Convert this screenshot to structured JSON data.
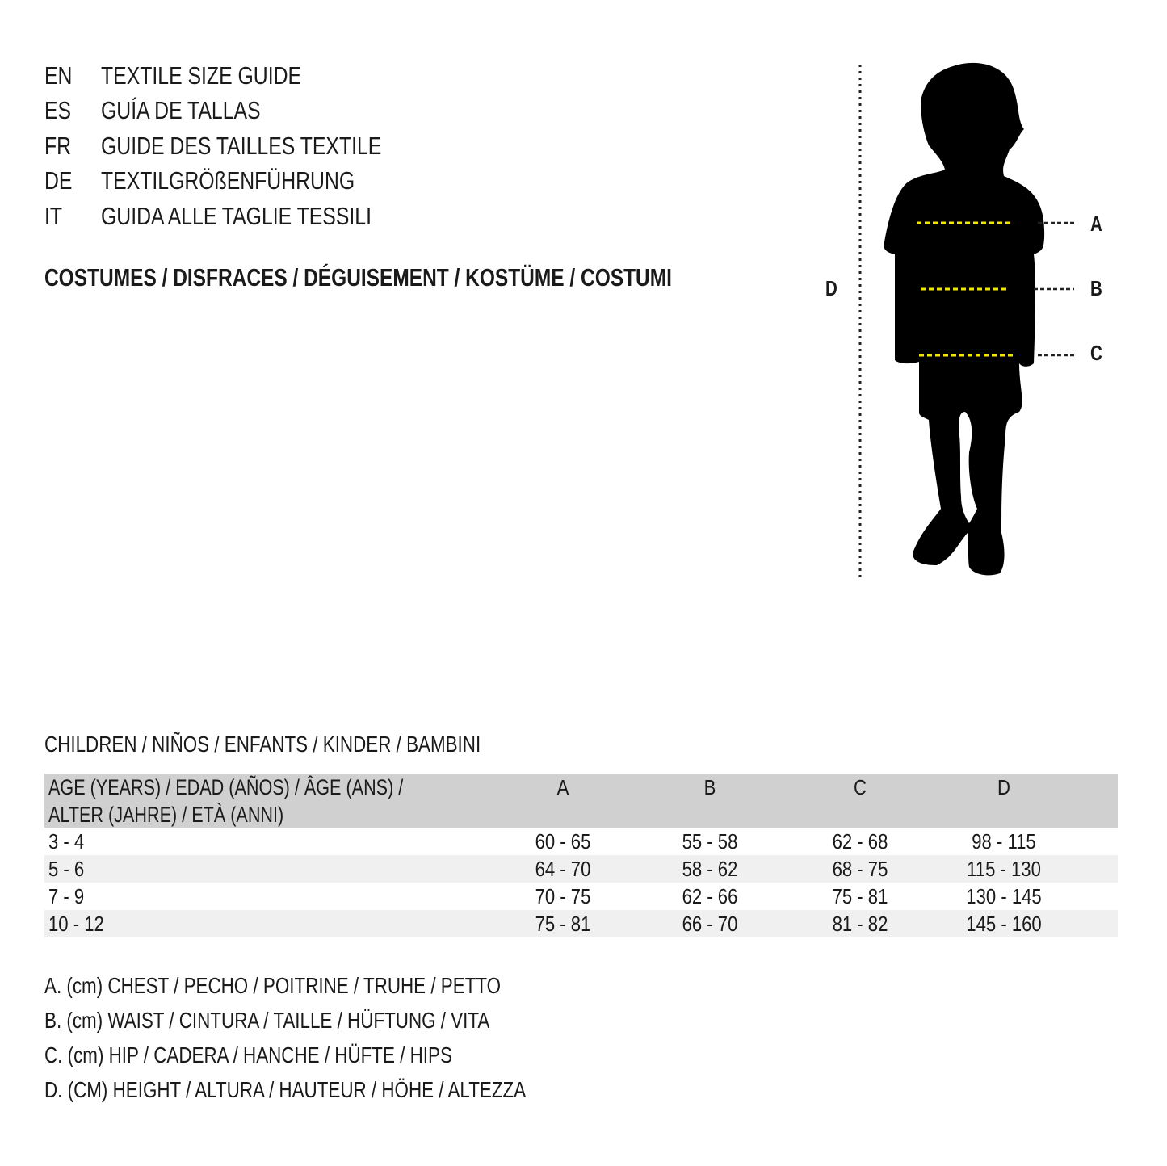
{
  "titles": [
    {
      "code": "EN",
      "text": "TEXTILE SIZE GUIDE"
    },
    {
      "code": "ES",
      "text": "GUÍA DE TALLAS"
    },
    {
      "code": "FR",
      "text": "GUIDE DES TAILLES TEXTILE"
    },
    {
      "code": "DE",
      "text": "TEXTILGRÖßENFÜHRUNG"
    },
    {
      "code": "IT",
      "text": "GUIDA ALLE TAGLIE TESSILI"
    }
  ],
  "category": "COSTUMES / DISFRACES / DÉGUISEMENT / KOSTÜME / COSTUMI",
  "figure": {
    "labels": {
      "a": "A",
      "b": "B",
      "c": "C",
      "d": "D"
    },
    "measure_line_color": "#f2e600"
  },
  "section": "CHILDREN / NIÑOS / ENFANTS / KINDER / BAMBINI",
  "table": {
    "header": {
      "age_line1": "AGE (YEARS) / EDAD (AÑOS) / ÂGE (ANS) /",
      "age_line2": "ALTER (JAHRE) / ETÀ (ANNI)",
      "a": "A",
      "b": "B",
      "c": "C",
      "d": "D"
    },
    "rows": [
      {
        "age": "3 - 4",
        "a": "60 - 65",
        "b": "55 - 58",
        "c": "62 - 68",
        "d": "98 - 115"
      },
      {
        "age": "5 - 6",
        "a": "64 - 70",
        "b": "58 - 62",
        "c": "68 - 75",
        "d": "115 - 130"
      },
      {
        "age": "7 - 9",
        "a": "70 - 75",
        "b": "62 - 66",
        "c": "75 - 81",
        "d": "130 - 145"
      },
      {
        "age": "10 - 12",
        "a": "75 - 81",
        "b": "66 - 70",
        "c": "81 - 82",
        "d": "145 - 160"
      }
    ]
  },
  "legend": [
    "A. (cm) CHEST / PECHO / POITRINE / TRUHE / PETTO",
    "B. (cm) WAIST / CINTURA / TAILLE / HÜFTUNG / VITA",
    "C. (cm) HIP / CADERA / HANCHE / HÜFTE / HIPS",
    "D. (CM) HEIGHT / ALTURA / HAUTEUR / HÖHE / ALTEZZA"
  ]
}
